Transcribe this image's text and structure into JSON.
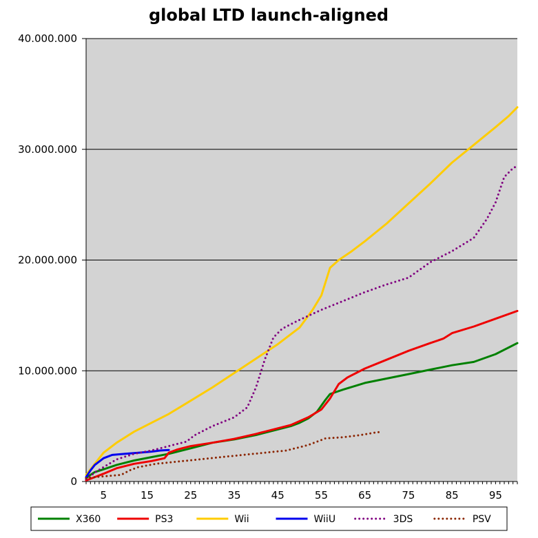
{
  "chart_data": {
    "type": "line",
    "title": "global LTD launch-aligned",
    "xlabel": "",
    "ylabel": "",
    "xlim": [
      1,
      100
    ],
    "ylim": [
      0,
      40000000
    ],
    "grid": true,
    "legend_position": "bottom",
    "plot_background": "#d3d3d3",
    "x_ticks": [
      {
        "value": 5,
        "label": "5"
      },
      {
        "value": 15,
        "label": "15"
      },
      {
        "value": 25,
        "label": "25"
      },
      {
        "value": 35,
        "label": "35"
      },
      {
        "value": 45,
        "label": "45"
      },
      {
        "value": 55,
        "label": "55"
      },
      {
        "value": 65,
        "label": "65"
      },
      {
        "value": 75,
        "label": "75"
      },
      {
        "value": 85,
        "label": "85"
      },
      {
        "value": 95,
        "label": "95"
      }
    ],
    "y_ticks": [
      {
        "value": 0,
        "label": "0"
      },
      {
        "value": 10000000,
        "label": "10.000.000"
      },
      {
        "value": 20000000,
        "label": "20.000.000"
      },
      {
        "value": 30000000,
        "label": "30.000.000"
      },
      {
        "value": 40000000,
        "label": "40.000.000"
      }
    ],
    "series": [
      {
        "name": "X360",
        "color": "#008000",
        "dash": false,
        "points": [
          [
            1,
            300000
          ],
          [
            2,
            600000
          ],
          [
            3,
            850000
          ],
          [
            5,
            1100000
          ],
          [
            8,
            1500000
          ],
          [
            12,
            1900000
          ],
          [
            16,
            2200000
          ],
          [
            20,
            2500000
          ],
          [
            25,
            3000000
          ],
          [
            30,
            3500000
          ],
          [
            35,
            3800000
          ],
          [
            40,
            4200000
          ],
          [
            45,
            4700000
          ],
          [
            48,
            5000000
          ],
          [
            50,
            5300000
          ],
          [
            52,
            5700000
          ],
          [
            54,
            6300000
          ],
          [
            56,
            7400000
          ],
          [
            57,
            7900000
          ],
          [
            60,
            8300000
          ],
          [
            65,
            8900000
          ],
          [
            70,
            9300000
          ],
          [
            75,
            9700000
          ],
          [
            80,
            10100000
          ],
          [
            85,
            10500000
          ],
          [
            90,
            10800000
          ],
          [
            95,
            11500000
          ],
          [
            98,
            12100000
          ],
          [
            100,
            12500000
          ]
        ]
      },
      {
        "name": "PS3",
        "color": "#ee0000",
        "dash": false,
        "points": [
          [
            1,
            100000
          ],
          [
            3,
            400000
          ],
          [
            5,
            700000
          ],
          [
            8,
            1200000
          ],
          [
            12,
            1600000
          ],
          [
            16,
            1850000
          ],
          [
            19,
            2100000
          ],
          [
            20,
            2600000
          ],
          [
            22,
            2900000
          ],
          [
            25,
            3200000
          ],
          [
            30,
            3500000
          ],
          [
            35,
            3850000
          ],
          [
            40,
            4300000
          ],
          [
            45,
            4800000
          ],
          [
            48,
            5100000
          ],
          [
            52,
            5800000
          ],
          [
            55,
            6500000
          ],
          [
            57,
            7500000
          ],
          [
            59,
            8800000
          ],
          [
            61,
            9400000
          ],
          [
            65,
            10200000
          ],
          [
            70,
            11000000
          ],
          [
            75,
            11800000
          ],
          [
            80,
            12500000
          ],
          [
            83,
            12900000
          ],
          [
            85,
            13400000
          ],
          [
            90,
            14000000
          ],
          [
            95,
            14700000
          ],
          [
            100,
            15400000
          ]
        ]
      },
      {
        "name": "Wii",
        "color": "#ffcc00",
        "dash": false,
        "points": [
          [
            1,
            600000
          ],
          [
            3,
            1600000
          ],
          [
            5,
            2600000
          ],
          [
            8,
            3500000
          ],
          [
            12,
            4500000
          ],
          [
            16,
            5300000
          ],
          [
            20,
            6100000
          ],
          [
            25,
            7300000
          ],
          [
            30,
            8500000
          ],
          [
            35,
            9800000
          ],
          [
            40,
            11100000
          ],
          [
            45,
            12400000
          ],
          [
            50,
            13900000
          ],
          [
            53,
            15500000
          ],
          [
            55,
            16800000
          ],
          [
            57,
            19300000
          ],
          [
            59,
            20000000
          ],
          [
            62,
            20800000
          ],
          [
            65,
            21700000
          ],
          [
            70,
            23300000
          ],
          [
            75,
            25100000
          ],
          [
            80,
            26900000
          ],
          [
            85,
            28800000
          ],
          [
            90,
            30400000
          ],
          [
            95,
            32000000
          ],
          [
            98,
            33000000
          ],
          [
            100,
            33800000
          ]
        ]
      },
      {
        "name": "WiiU",
        "color": "#0000ee",
        "dash": false,
        "points": [
          [
            1,
            400000
          ],
          [
            2,
            1000000
          ],
          [
            3,
            1500000
          ],
          [
            5,
            2100000
          ],
          [
            7,
            2400000
          ],
          [
            10,
            2500000
          ],
          [
            13,
            2600000
          ],
          [
            16,
            2700000
          ],
          [
            18,
            2800000
          ],
          [
            20,
            2850000
          ]
        ]
      },
      {
        "name": "3DS",
        "color": "#800080",
        "dash": true,
        "points": [
          [
            1,
            200000
          ],
          [
            3,
            800000
          ],
          [
            5,
            1300000
          ],
          [
            8,
            2000000
          ],
          [
            12,
            2500000
          ],
          [
            16,
            2800000
          ],
          [
            20,
            3200000
          ],
          [
            24,
            3600000
          ],
          [
            26,
            4200000
          ],
          [
            30,
            5000000
          ],
          [
            35,
            5800000
          ],
          [
            38,
            6700000
          ],
          [
            40,
            8500000
          ],
          [
            42,
            11000000
          ],
          [
            44,
            13000000
          ],
          [
            46,
            13800000
          ],
          [
            50,
            14600000
          ],
          [
            55,
            15500000
          ],
          [
            60,
            16300000
          ],
          [
            65,
            17100000
          ],
          [
            70,
            17800000
          ],
          [
            75,
            18400000
          ],
          [
            80,
            19800000
          ],
          [
            85,
            20800000
          ],
          [
            90,
            22000000
          ],
          [
            93,
            23700000
          ],
          [
            95,
            25200000
          ],
          [
            97,
            27500000
          ],
          [
            99,
            28300000
          ],
          [
            100,
            28500000
          ]
        ]
      },
      {
        "name": "PSV",
        "color": "#8b2500",
        "dash": true,
        "points": [
          [
            1,
            300000
          ],
          [
            3,
            400000
          ],
          [
            6,
            500000
          ],
          [
            9,
            600000
          ],
          [
            11,
            1000000
          ],
          [
            13,
            1300000
          ],
          [
            17,
            1600000
          ],
          [
            22,
            1800000
          ],
          [
            27,
            2000000
          ],
          [
            32,
            2200000
          ],
          [
            37,
            2400000
          ],
          [
            42,
            2600000
          ],
          [
            47,
            2800000
          ],
          [
            52,
            3300000
          ],
          [
            56,
            3900000
          ],
          [
            60,
            4000000
          ],
          [
            64,
            4200000
          ],
          [
            67,
            4400000
          ],
          [
            69,
            4500000
          ]
        ]
      }
    ]
  }
}
